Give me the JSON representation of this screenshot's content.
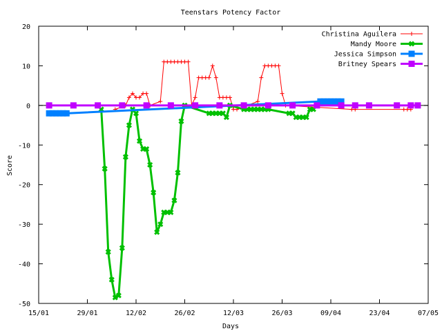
{
  "chart_data": {
    "type": "line",
    "title": "Teenstars Potency Factor",
    "xlabel": "Days",
    "ylabel": "Score",
    "x_is_date": true,
    "xlim": [
      "2005-01-15",
      "2005-05-07"
    ],
    "ylim": [
      -50,
      20
    ],
    "x_ticks": [
      {
        "date": "2005-01-15",
        "label": "15/01"
      },
      {
        "date": "2005-01-29",
        "label": "29/01"
      },
      {
        "date": "2005-02-12",
        "label": "12/02"
      },
      {
        "date": "2005-02-26",
        "label": "26/02"
      },
      {
        "date": "2005-03-12",
        "label": "12/03"
      },
      {
        "date": "2005-03-26",
        "label": "26/03"
      },
      {
        "date": "2005-04-09",
        "label": "09/04"
      },
      {
        "date": "2005-04-23",
        "label": "23/04"
      },
      {
        "date": "2005-05-07",
        "label": "07/05"
      }
    ],
    "y_ticks": [
      20,
      10,
      0,
      -10,
      -20,
      -30,
      -40,
      -50
    ],
    "grid": false,
    "legend_position": "top-right",
    "series": [
      {
        "name": "Christina Aguilera",
        "color": "#ff0000",
        "marker": "plus",
        "line_width": 1,
        "points": [
          [
            "2005-02-06",
            -1
          ],
          [
            "2005-02-09",
            0
          ],
          [
            "2005-02-10",
            2
          ],
          [
            "2005-02-11",
            3
          ],
          [
            "2005-02-12",
            2
          ],
          [
            "2005-02-13",
            2
          ],
          [
            "2005-02-14",
            3
          ],
          [
            "2005-02-15",
            3
          ],
          [
            "2005-02-16",
            0
          ],
          [
            "2005-02-19",
            1
          ],
          [
            "2005-02-20",
            11
          ],
          [
            "2005-02-21",
            11
          ],
          [
            "2005-02-22",
            11
          ],
          [
            "2005-02-23",
            11
          ],
          [
            "2005-02-24",
            11
          ],
          [
            "2005-02-25",
            11
          ],
          [
            "2005-02-26",
            11
          ],
          [
            "2005-02-27",
            11
          ],
          [
            "2005-02-28",
            0
          ],
          [
            "2005-03-01",
            2
          ],
          [
            "2005-03-02",
            7
          ],
          [
            "2005-03-03",
            7
          ],
          [
            "2005-03-04",
            7
          ],
          [
            "2005-03-05",
            7
          ],
          [
            "2005-03-06",
            10
          ],
          [
            "2005-03-07",
            7
          ],
          [
            "2005-03-08",
            2
          ],
          [
            "2005-03-09",
            2
          ],
          [
            "2005-03-10",
            2
          ],
          [
            "2005-03-11",
            2
          ],
          [
            "2005-03-12",
            -1
          ],
          [
            "2005-03-13",
            -1
          ],
          [
            "2005-03-19",
            1
          ],
          [
            "2005-03-20",
            7
          ],
          [
            "2005-03-21",
            10
          ],
          [
            "2005-03-22",
            10
          ],
          [
            "2005-03-23",
            10
          ],
          [
            "2005-03-24",
            10
          ],
          [
            "2005-03-25",
            10
          ],
          [
            "2005-03-26",
            3
          ],
          [
            "2005-03-27",
            0
          ],
          [
            "2005-04-15",
            -1
          ],
          [
            "2005-04-16",
            -1
          ],
          [
            "2005-04-30",
            -1
          ],
          [
            "2005-05-01",
            -1
          ],
          [
            "2005-05-02",
            -1
          ]
        ]
      },
      {
        "name": "Mandy Moore",
        "color": "#00c000",
        "marker": "x",
        "line_width": 3,
        "points": [
          [
            "2005-02-02",
            -1
          ],
          [
            "2005-02-03",
            -16
          ],
          [
            "2005-02-04",
            -37
          ],
          [
            "2005-02-05",
            -44
          ],
          [
            "2005-02-06",
            -48.5
          ],
          [
            "2005-02-07",
            -48
          ],
          [
            "2005-02-08",
            -36
          ],
          [
            "2005-02-09",
            -13
          ],
          [
            "2005-02-10",
            -5
          ],
          [
            "2005-02-11",
            -1
          ],
          [
            "2005-02-12",
            -2
          ],
          [
            "2005-02-13",
            -9
          ],
          [
            "2005-02-14",
            -11
          ],
          [
            "2005-02-15",
            -11
          ],
          [
            "2005-02-16",
            -15
          ],
          [
            "2005-02-17",
            -22
          ],
          [
            "2005-02-18",
            -32
          ],
          [
            "2005-02-19",
            -30
          ],
          [
            "2005-02-20",
            -27
          ],
          [
            "2005-02-21",
            -27
          ],
          [
            "2005-02-22",
            -27
          ],
          [
            "2005-02-23",
            -24
          ],
          [
            "2005-02-24",
            -17
          ],
          [
            "2005-02-25",
            -4
          ],
          [
            "2005-02-26",
            0
          ],
          [
            "2005-03-05",
            -2
          ],
          [
            "2005-03-06",
            -2
          ],
          [
            "2005-03-07",
            -2
          ],
          [
            "2005-03-08",
            -2
          ],
          [
            "2005-03-09",
            -2
          ],
          [
            "2005-03-10",
            -3
          ],
          [
            "2005-03-11",
            0
          ],
          [
            "2005-03-15",
            -1
          ],
          [
            "2005-03-16",
            -1
          ],
          [
            "2005-03-17",
            -1
          ],
          [
            "2005-03-18",
            -1
          ],
          [
            "2005-03-19",
            -1
          ],
          [
            "2005-03-20",
            -1
          ],
          [
            "2005-03-21",
            -1
          ],
          [
            "2005-03-22",
            -1
          ],
          [
            "2005-03-28",
            -2
          ],
          [
            "2005-03-29",
            -2
          ],
          [
            "2005-03-30",
            -3
          ],
          [
            "2005-03-31",
            -3
          ],
          [
            "2005-04-01",
            -3
          ],
          [
            "2005-04-02",
            -3
          ],
          [
            "2005-04-03",
            -1
          ],
          [
            "2005-04-04",
            -1
          ]
        ]
      },
      {
        "name": "Jessica Simpson",
        "color": "#0080ff",
        "marker": "square",
        "line_width": 3,
        "points": [
          [
            "2005-01-18",
            -2
          ],
          [
            "2005-01-19",
            -2
          ],
          [
            "2005-01-20",
            -2
          ],
          [
            "2005-01-21",
            -2
          ],
          [
            "2005-01-22",
            -2
          ],
          [
            "2005-01-23",
            -2
          ],
          [
            "2005-04-06",
            1
          ],
          [
            "2005-04-07",
            1
          ],
          [
            "2005-04-08",
            1
          ],
          [
            "2005-04-09",
            1
          ],
          [
            "2005-04-10",
            1
          ],
          [
            "2005-04-11",
            1
          ],
          [
            "2005-04-12",
            1
          ]
        ]
      },
      {
        "name": "Britney Spears",
        "color": "#c000ff",
        "marker": "square",
        "line_width": 3,
        "points": [
          [
            "2005-01-18",
            0
          ],
          [
            "2005-01-25",
            0
          ],
          [
            "2005-02-01",
            0
          ],
          [
            "2005-02-08",
            0
          ],
          [
            "2005-02-15",
            0
          ],
          [
            "2005-02-22",
            0
          ],
          [
            "2005-03-01",
            0
          ],
          [
            "2005-03-08",
            0
          ],
          [
            "2005-03-15",
            0
          ],
          [
            "2005-03-22",
            0
          ],
          [
            "2005-03-29",
            0
          ],
          [
            "2005-04-05",
            0
          ],
          [
            "2005-04-12",
            0
          ],
          [
            "2005-04-16",
            0
          ],
          [
            "2005-04-20",
            0
          ],
          [
            "2005-04-28",
            0
          ],
          [
            "2005-05-02",
            0
          ],
          [
            "2005-05-04",
            0
          ]
        ]
      }
    ]
  }
}
